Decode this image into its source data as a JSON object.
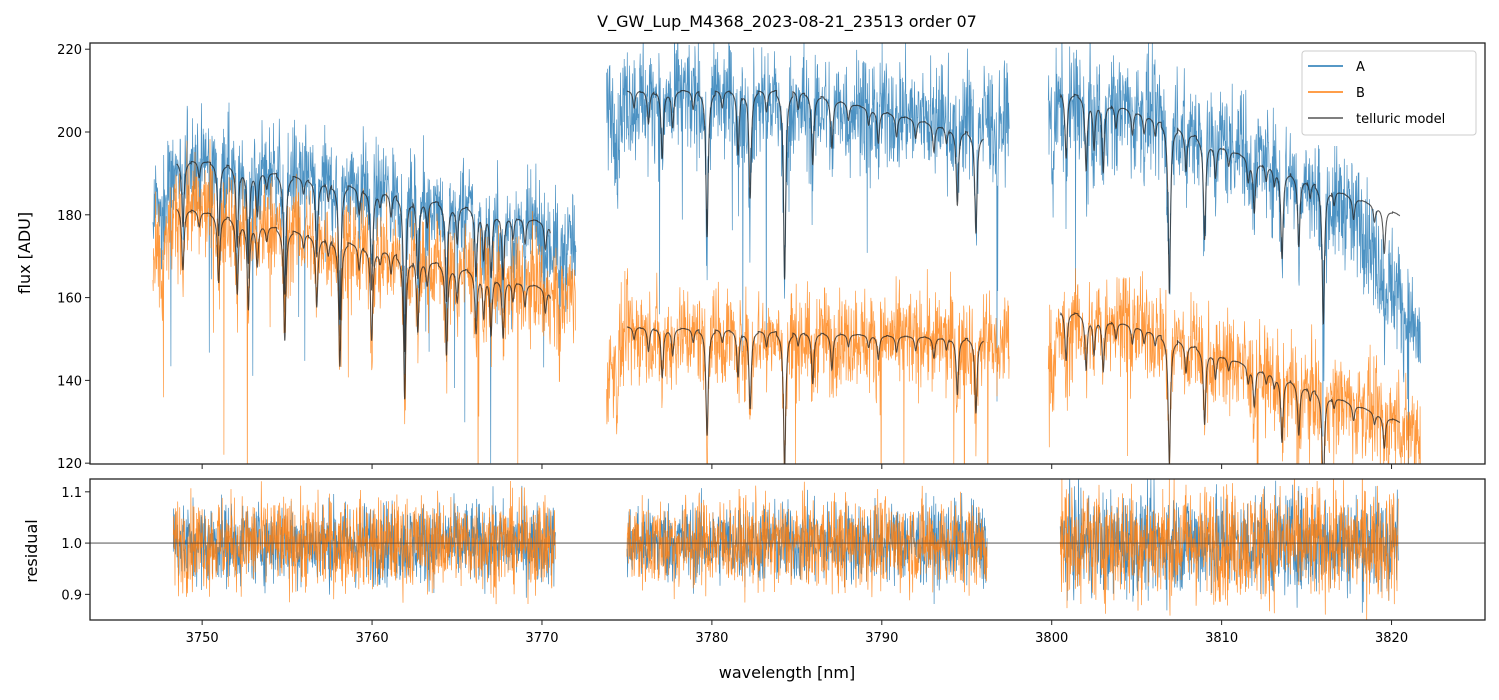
{
  "chart_data": [
    {
      "type": "line",
      "title": "V_GW_Lup_M4368_2023-08-21_23513  order 07",
      "xlabel": "",
      "ylabel": "flux [ADU]",
      "xlim": [
        3743.4,
        3825.5
      ],
      "ylim": [
        119.8,
        221.5
      ],
      "yticks": [
        120,
        140,
        160,
        180,
        200,
        220
      ],
      "legend": {
        "placement": "top-right",
        "entries": [
          "A",
          "B",
          "telluric model"
        ]
      },
      "colors": {
        "A": "#1f77b4",
        "B": "#ff7f0e",
        "telluric model": "#333333"
      },
      "series": [
        {
          "name": "A",
          "segments": [
            {
              "x": [
                3747.1,
                3749.0,
                3760.0,
                3772.0
              ],
              "continuum": [
                183,
                194,
                188,
                174
              ],
              "noise": 6
            },
            {
              "x": [
                3773.8,
                3776.0,
                3797.5
              ],
              "continuum": [
                205,
                210,
                203
              ],
              "noise": 7
            },
            {
              "x": [
                3799.8,
                3803.0,
                3812.0,
                3818.0,
                3821.7
              ],
              "continuum": [
                207,
                208,
                196,
                180,
                150
              ],
              "noise": 7
            }
          ]
        },
        {
          "name": "B",
          "segments": [
            {
              "x": [
                3747.1,
                3749.0,
                3760.0,
                3772.0
              ],
              "continuum": [
                168,
                183,
                172,
                162
              ],
              "noise": 6
            },
            {
              "x": [
                3773.8,
                3775.0,
                3797.5
              ],
              "continuum": [
                140,
                152,
                150
              ],
              "noise": 6
            },
            {
              "x": [
                3799.8,
                3803.0,
                3812.0,
                3821.7
              ],
              "continuum": [
                150,
                157,
                143,
                128
              ],
              "noise": 6
            }
          ]
        },
        {
          "name": "telluric model (A)",
          "segments": [
            {
              "x": [
                3748.5,
                3750.0,
                3760.0,
                3770.5
              ],
              "continuum": [
                193,
                193,
                186,
                178
              ]
            },
            {
              "x": [
                3775.0,
                3785.0,
                3796.0
              ],
              "continuum": [
                210,
                210,
                199
              ]
            },
            {
              "x": [
                3800.5,
                3805.0,
                3812.0,
                3820.5
              ],
              "continuum": [
                210,
                205,
                193,
                180
              ]
            }
          ]
        },
        {
          "name": "telluric model (B)",
          "segments": [
            {
              "x": [
                3748.5,
                3760.0,
                3770.5
              ],
              "continuum": [
                182,
                172,
                162
              ]
            },
            {
              "x": [
                3775.0,
                3796.0
              ],
              "continuum": [
                153,
                150
              ]
            },
            {
              "x": [
                3800.5,
                3805.0,
                3812.0,
                3820.5
              ],
              "continuum": [
                157,
                153,
                143,
                130
              ]
            }
          ]
        }
      ]
    },
    {
      "type": "line",
      "xlabel": "wavelength [nm]",
      "ylabel": "residual",
      "xlim": [
        3743.4,
        3825.5
      ],
      "ylim": [
        0.85,
        1.125
      ],
      "xticks": [
        3750,
        3760,
        3770,
        3780,
        3790,
        3800,
        3810,
        3820
      ],
      "yticks": [
        0.9,
        1.0,
        1.1
      ],
      "reference_line": 1.0,
      "series": [
        {
          "name": "A",
          "segments": [
            [
              3748.3,
              3770.8
            ],
            [
              3775.0,
              3796.2
            ],
            [
              3800.5,
              3820.4
            ]
          ],
          "center": 1.0,
          "noise": 0.04
        },
        {
          "name": "B",
          "segments": [
            [
              3748.3,
              3770.8
            ],
            [
              3775.0,
              3796.2
            ],
            [
              3800.5,
              3820.4
            ]
          ],
          "center": 1.0,
          "noise": 0.045
        }
      ]
    }
  ]
}
